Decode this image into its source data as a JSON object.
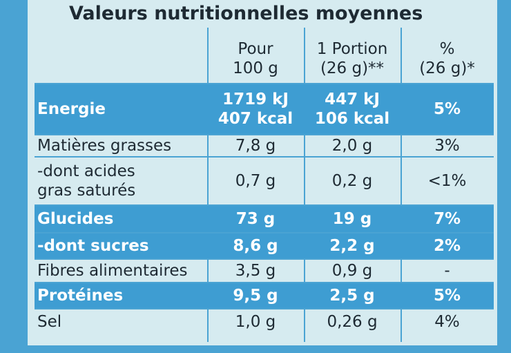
{
  "title": "Valeurs nutritionnelles moyennes",
  "table": {
    "headers": [
      [
        "Pour",
        "100 g"
      ],
      [
        "1 Portion",
        "(26 g)**"
      ],
      [
        "%",
        "(26 g)*"
      ]
    ],
    "rows": [
      {
        "label": [
          "Energie"
        ],
        "cells": [
          [
            "1719 kJ",
            "407 kcal"
          ],
          [
            "447 kJ",
            "106 kcal"
          ],
          [
            "5%"
          ]
        ],
        "highlighted": true
      },
      {
        "label": [
          "Matières grasses"
        ],
        "cells": [
          [
            "7,8 g"
          ],
          [
            "2,0 g"
          ],
          [
            "3%"
          ]
        ],
        "highlighted": false
      },
      {
        "label": [
          "-dont acides",
          "gras saturés"
        ],
        "cells": [
          [
            "0,7 g"
          ],
          [
            "0,2 g"
          ],
          [
            "<1%"
          ]
        ],
        "highlighted": false
      },
      {
        "label": [
          "Glucides"
        ],
        "cells": [
          [
            "73 g"
          ],
          [
            "19 g"
          ],
          [
            "7%"
          ]
        ],
        "highlighted": true
      },
      {
        "label": [
          "-dont sucres"
        ],
        "cells": [
          [
            "8,6 g"
          ],
          [
            "2,2 g"
          ],
          [
            "2%"
          ]
        ],
        "highlighted": true
      },
      {
        "label": [
          "Fibres alimentaires"
        ],
        "cells": [
          [
            "3,5 g"
          ],
          [
            "0,9 g"
          ],
          [
            "-"
          ]
        ],
        "highlighted": false
      },
      {
        "label": [
          "Protéines"
        ],
        "cells": [
          [
            "9,5 g"
          ],
          [
            "2,5 g"
          ],
          [
            "5%"
          ]
        ],
        "highlighted": true
      },
      {
        "label": [
          "Sel"
        ],
        "cells": [
          [
            "1,0 g"
          ],
          [
            "0,26 g"
          ],
          [
            "4%"
          ]
        ],
        "highlighted": false
      }
    ]
  }
}
